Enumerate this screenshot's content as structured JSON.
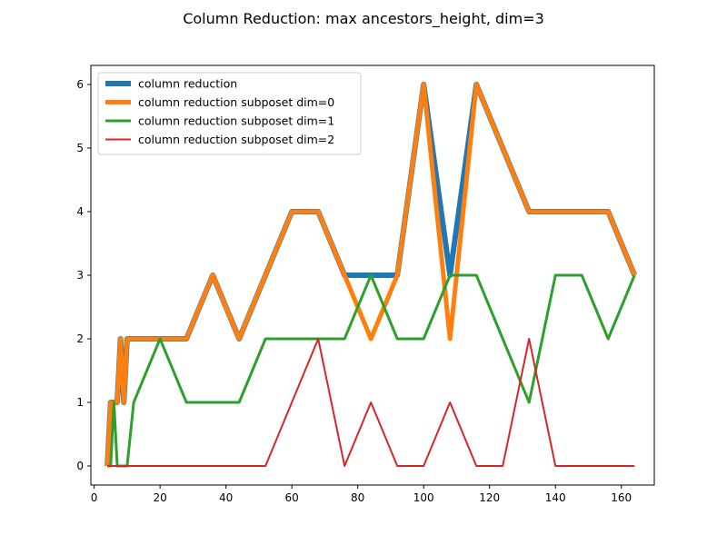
{
  "chart_data": {
    "type": "line",
    "title": "Column Reduction: max ancestors_height, dim=3",
    "xlabel": "",
    "ylabel": "",
    "xlim": [
      -1,
      170
    ],
    "ylim": [
      -0.3,
      6.3
    ],
    "xticks": [
      0,
      20,
      40,
      60,
      80,
      100,
      120,
      140,
      160
    ],
    "yticks": [
      0,
      1,
      2,
      3,
      4,
      5,
      6
    ],
    "grid": false,
    "legend_position": "top-left",
    "series": [
      {
        "name": "column reduction",
        "color": "#1f77b4",
        "x": [
          4,
          5,
          6,
          7,
          8,
          9,
          10,
          12,
          20,
          28,
          36,
          44,
          52,
          60,
          68,
          76,
          84,
          92,
          100,
          108,
          116,
          124,
          132,
          140,
          148,
          156,
          164
        ],
        "y": [
          0,
          1,
          1,
          1,
          2,
          1,
          2,
          2,
          2,
          2,
          3,
          2,
          3,
          4,
          4,
          3,
          3,
          3,
          6,
          3,
          6,
          5,
          4,
          4,
          4,
          4,
          3
        ]
      },
      {
        "name": "column reduction subposet dim=0",
        "color": "#ff7f0e",
        "x": [
          4,
          5,
          6,
          7,
          8,
          9,
          10,
          12,
          20,
          28,
          36,
          44,
          52,
          60,
          68,
          76,
          84,
          92,
          100,
          108,
          116,
          124,
          132,
          140,
          148,
          156,
          164
        ],
        "y": [
          0,
          1,
          1,
          1,
          2,
          1,
          2,
          2,
          2,
          2,
          3,
          2,
          3,
          4,
          4,
          3,
          2,
          3,
          6,
          2,
          6,
          5,
          4,
          4,
          4,
          4,
          3
        ]
      },
      {
        "name": "column reduction subposet dim=1",
        "color": "#2ca02c",
        "x": [
          4,
          5,
          6,
          7,
          8,
          9,
          10,
          12,
          20,
          28,
          36,
          44,
          52,
          60,
          68,
          76,
          84,
          92,
          100,
          108,
          116,
          124,
          132,
          140,
          148,
          156,
          164
        ],
        "y": [
          0,
          0,
          1,
          0,
          0,
          0,
          0,
          1,
          2,
          1,
          1,
          1,
          2,
          2,
          2,
          2,
          3,
          2,
          2,
          3,
          3,
          2,
          1,
          3,
          3,
          2,
          3
        ]
      },
      {
        "name": "column reduction subposet dim=2",
        "color": "#d62728",
        "x": [
          4,
          5,
          6,
          7,
          8,
          9,
          10,
          12,
          20,
          28,
          36,
          44,
          52,
          60,
          68,
          76,
          84,
          92,
          100,
          108,
          116,
          124,
          132,
          140,
          148,
          156,
          164
        ],
        "y": [
          0,
          0,
          0,
          0,
          0,
          0,
          0,
          0,
          0,
          0,
          0,
          0,
          0,
          1,
          2,
          0,
          1,
          0,
          0,
          1,
          0,
          0,
          2,
          0,
          0,
          0,
          0
        ]
      }
    ]
  }
}
